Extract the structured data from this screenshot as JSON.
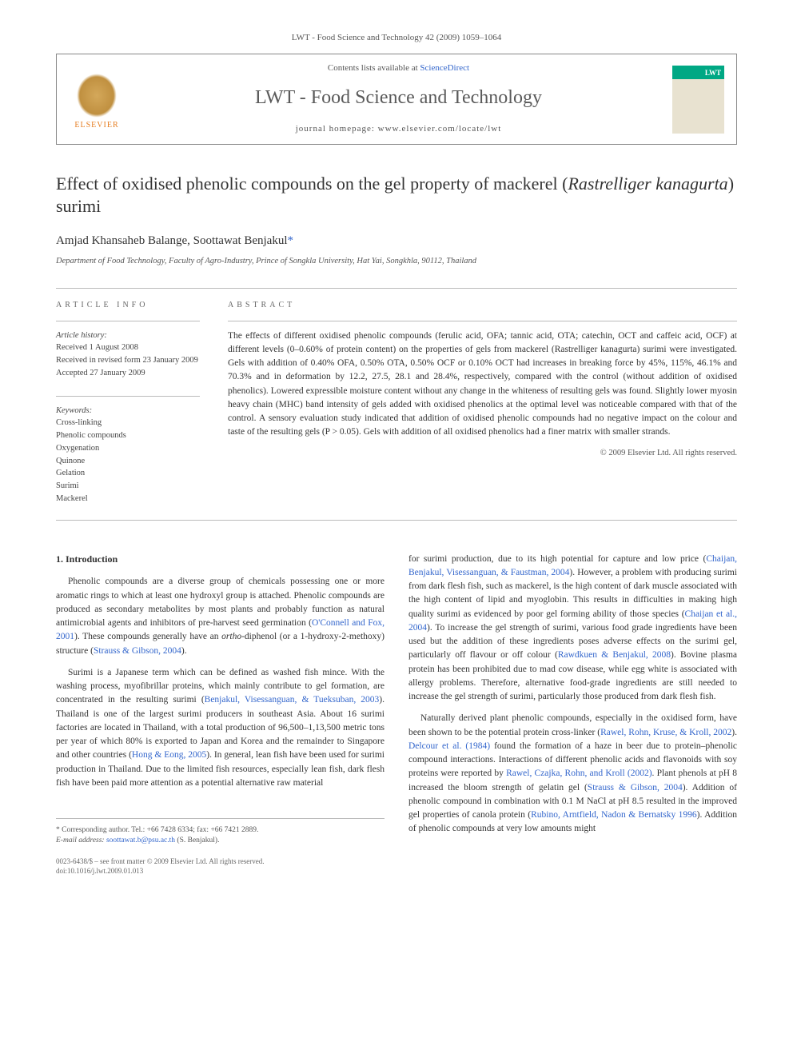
{
  "header": {
    "citation": "LWT - Food Science and Technology 42 (2009) 1059–1064",
    "contents_prefix": "Contents lists available at ",
    "contents_link": "ScienceDirect",
    "journal_name": "LWT - Food Science and Technology",
    "homepage_label": "journal homepage: www.elsevier.com/locate/lwt",
    "elsevier_label": "ELSEVIER"
  },
  "article": {
    "title_html": "Effect of oxidised phenolic compounds on the gel property of mackerel (<em>Rastrelliger kanagurta</em>) surimi",
    "authors_html": "Amjad Khansaheb Balange, Soottawat Benjakul<span class=\"corr\">*</span>",
    "affiliation": "Department of Food Technology, Faculty of Agro-Industry, Prince of Songkla University, Hat Yai, Songkhla, 90112, Thailand"
  },
  "info": {
    "label": "ARTICLE INFO",
    "history_heading": "Article history:",
    "received": "Received 1 August 2008",
    "revised": "Received in revised form 23 January 2009",
    "accepted": "Accepted 27 January 2009",
    "keywords_heading": "Keywords:",
    "keywords": [
      "Cross-linking",
      "Phenolic compounds",
      "Oxygenation",
      "Quinone",
      "Gelation",
      "Surimi",
      "Mackerel"
    ]
  },
  "abstract": {
    "label": "ABSTRACT",
    "text": "The effects of different oxidised phenolic compounds (ferulic acid, OFA; tannic acid, OTA; catechin, OCT and caffeic acid, OCF) at different levels (0–0.60% of protein content) on the properties of gels from mackerel (Rastrelliger kanagurta) surimi were investigated. Gels with addition of 0.40% OFA, 0.50% OTA, 0.50% OCF or 0.10% OCT had increases in breaking force by 45%, 115%, 46.1% and 70.3% and in deformation by 12.2, 27.5, 28.1 and 28.4%, respectively, compared with the control (without addition of oxidised phenolics). Lowered expressible moisture content without any change in the whiteness of resulting gels was found. Slightly lower myosin heavy chain (MHC) band intensity of gels added with oxidised phenolics at the optimal level was noticeable compared with that of the control. A sensory evaluation study indicated that addition of oxidised phenolic compounds had no negative impact on the colour and taste of the resulting gels (P > 0.05). Gels with addition of all oxidised phenolics had a finer matrix with smaller strands.",
    "copyright": "© 2009 Elsevier Ltd. All rights reserved."
  },
  "body": {
    "heading": "1. Introduction",
    "left_paragraphs": [
      "Phenolic compounds are a diverse group of chemicals possessing one or more aromatic rings to which at least one hydroxyl group is attached. Phenolic compounds are produced as secondary metabolites by most plants and probably function as natural antimicrobial agents and inhibitors of pre-harvest seed germination (<a class=\"ref-link\">O'Connell and Fox, 2001</a>). These compounds generally have an <em>ortho</em>-diphenol (or a 1-hydroxy-2-methoxy) structure (<a class=\"ref-link\">Strauss & Gibson, 2004</a>).",
      "Surimi is a Japanese term which can be defined as washed fish mince. With the washing process, myofibrillar proteins, which mainly contribute to gel formation, are concentrated in the resulting surimi (<a class=\"ref-link\">Benjakul, Visessanguan, & Tueksuban, 2003</a>). Thailand is one of the largest surimi producers in southeast Asia. About 16 surimi factories are located in Thailand, with a total production of 96,500–1,13,500 metric tons per year of which 80% is exported to Japan and Korea and the remainder to Singapore and other countries (<a class=\"ref-link\">Hong & Eong, 2005</a>). In general, lean fish have been used for surimi production in Thailand. Due to the limited fish resources, especially lean fish, dark flesh fish have been paid more attention as a potential alternative raw material"
    ],
    "right_paragraphs": [
      "for surimi production, due to its high potential for capture and low price (<a class=\"ref-link\">Chaijan, Benjakul, Visessanguan, & Faustman, 2004</a>). However, a problem with producing surimi from dark flesh fish, such as mackerel, is the high content of dark muscle associated with the high content of lipid and myoglobin. This results in difficulties in making high quality surimi as evidenced by poor gel forming ability of those species (<a class=\"ref-link\">Chaijan et al., 2004</a>). To increase the gel strength of surimi, various food grade ingredients have been used but the addition of these ingredients poses adverse effects on the surimi gel, particularly off flavour or off colour (<a class=\"ref-link\">Rawdkuen & Benjakul, 2008</a>). Bovine plasma protein has been prohibited due to mad cow disease, while egg white is associated with allergy problems. Therefore, alternative food-grade ingredients are still needed to increase the gel strength of surimi, particularly those produced from dark flesh fish.",
      "Naturally derived plant phenolic compounds, especially in the oxidised form, have been shown to be the potential protein cross-linker (<a class=\"ref-link\">Rawel, Rohn, Kruse, & Kroll, 2002</a>). <a class=\"ref-link\">Delcour et al. (1984)</a> found the formation of a haze in beer due to protein–phenolic compound interactions. Interactions of different phenolic acids and flavonoids with soy proteins were reported by <a class=\"ref-link\">Rawel, Czajka, Rohn, and Kroll (2002)</a>. Plant phenols at pH 8 increased the bloom strength of gelatin gel (<a class=\"ref-link\">Strauss & Gibson, 2004</a>). Addition of phenolic compound in combination with 0.1 M NaCl at pH 8.5 resulted in the improved gel properties of canola protein (<a class=\"ref-link\">Rubino, Arntfield, Nadon & Bernatsky 1996</a>). Addition of phenolic compounds at very low amounts might"
    ]
  },
  "footer": {
    "corresponding": "* Corresponding author. Tel.: +66 7428 6334; fax: +66 7421 2889.",
    "email_label": "E-mail address:",
    "email": "soottawat.b@psu.ac.th",
    "email_who": "(S. Benjakul).",
    "issn_line": "0023-6438/$ – see front matter © 2009 Elsevier Ltd. All rights reserved.",
    "doi_line": "doi:10.1016/j.lwt.2009.01.013"
  },
  "colors": {
    "link": "#3366cc",
    "text": "#333333",
    "muted": "#555555",
    "border": "#bbbbbb",
    "elsevier_orange": "#e67e22",
    "cover_teal": "#00a884"
  }
}
